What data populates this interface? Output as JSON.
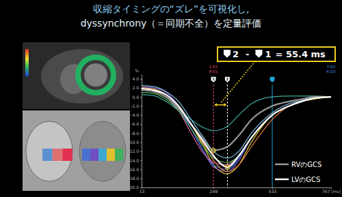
{
  "chart_data": {
    "type": "line",
    "title": "収縮タイミングの“ズレ”を可視化し,",
    "subtitle": "dyssynchrony（＝同期不全）を定量評価",
    "y_label": "%",
    "x": [
      13,
      60,
      110,
      160,
      210,
      260,
      299,
      354.4,
      400,
      450,
      533,
      600,
      650,
      700,
      767
    ],
    "xlim": [
      13,
      767
    ],
    "xticks": [
      13,
      299,
      533,
      {
        "value": 767,
        "label": "767 [ms]"
      }
    ],
    "ylim": [
      -20,
      5
    ],
    "yticks": [
      {
        "value": -20,
        "label": "-20.0"
      },
      {
        "value": -18,
        "label": "-18.0"
      },
      {
        "value": -16,
        "label": "-16.0"
      },
      {
        "value": -14,
        "label": "-14.0"
      },
      {
        "value": -12,
        "label": "-12.0"
      },
      {
        "value": -10,
        "label": "-10.0"
      },
      {
        "value": -8,
        "label": "-8.0"
      },
      {
        "value": -6,
        "label": "-6.0"
      },
      {
        "value": -4,
        "label": "-4.0"
      },
      {
        "value": -2,
        "label": "-2.0"
      },
      {
        "value": 0,
        "label": "0.0"
      },
      {
        "value": 2,
        "label": "2.0"
      },
      {
        "value": 4,
        "label": "4.0"
      }
    ],
    "grid": false,
    "legend": "lower right",
    "series": [
      {
        "color": "#40a8a0",
        "values": [
          0.5,
          0.3,
          -1,
          -3,
          -5,
          -6.8,
          -7.5,
          -6.5,
          -4,
          -1.5,
          0,
          0.2,
          0.2,
          0.2,
          0
        ]
      },
      {
        "color": "#e8d040",
        "values": [
          2,
          1.8,
          0.5,
          -2,
          -6,
          -11,
          -15,
          -17,
          -15,
          -10,
          -4,
          -2,
          -1,
          -0.5,
          0
        ]
      },
      {
        "color": "#8060d0",
        "values": [
          2.2,
          2,
          1,
          -2,
          -7,
          -12,
          -15.5,
          -16.5,
          -14,
          -9,
          -4,
          -2,
          -1,
          -0.3,
          0
        ]
      },
      {
        "color": "#4070e0",
        "values": [
          1.8,
          1.6,
          0.5,
          -2.5,
          -7,
          -12,
          -15,
          -16,
          -13.5,
          -9,
          -4,
          -2,
          -1,
          -0.3,
          0
        ]
      },
      {
        "color": "#d060a0",
        "values": [
          1.5,
          1.2,
          0,
          -3,
          -8,
          -12.5,
          -14.5,
          -15,
          -13,
          -9,
          -4,
          -2,
          -1,
          -0.3,
          0
        ]
      },
      {
        "color": "#e08040",
        "values": [
          2,
          1.7,
          0.5,
          -2,
          -6,
          -10.5,
          -14,
          -16.5,
          -15,
          -11,
          -5,
          -2,
          -1,
          -0.3,
          0
        ]
      },
      {
        "color": "#80c0e0",
        "values": [
          2.5,
          2.3,
          1.2,
          -1,
          -5,
          -9,
          -12,
          -13.5,
          -12,
          -8,
          -3.5,
          -1.5,
          -0.8,
          -0.2,
          0
        ]
      },
      {
        "color": "#60c060",
        "values": [
          1,
          0.8,
          -0.5,
          -3,
          -7,
          -11,
          -13.5,
          -14.5,
          -13,
          -9,
          -4,
          -2,
          -1,
          -0.3,
          0
        ]
      },
      {
        "name": "RVのGCS",
        "color": "#9a9a9a",
        "values": [
          1.5,
          1.2,
          0,
          -2.5,
          -6,
          -9.5,
          -11.8,
          -11,
          -8.5,
          -5,
          -2,
          -1,
          -0.5,
          0,
          0
        ]
      },
      {
        "name": "LVのGCS",
        "color": "#ffffff",
        "values": [
          1.8,
          1.5,
          0.5,
          -2,
          -6,
          -10,
          -13,
          -15.5,
          -13,
          -9,
          -4,
          -2,
          -1,
          -0.3,
          0
        ]
      }
    ],
    "markers": [
      {
        "label": "1",
        "x": 299,
        "color": "#e0507a",
        "line_style": "dashed"
      },
      {
        "label": "2",
        "x": 354.4,
        "color": "#ffffff",
        "line_style": "dashed"
      },
      {
        "x": 533,
        "color": "#1fa8d8",
        "line_style": "solid"
      }
    ],
    "events": [
      {
        "x": 299,
        "labels": [
          "1-ES",
          "R-ES"
        ],
        "color": "#e04060"
      },
      {
        "x": 767,
        "labels": [
          "T-ED",
          "R-ED"
        ],
        "color": "#4080e0"
      }
    ],
    "highlights": [
      {
        "x": 299,
        "y": -11.8,
        "color": "#f0d020"
      },
      {
        "x": 354.4,
        "y": -15.5,
        "color": "#f0d020"
      }
    ],
    "difference": {
      "first": "2",
      "operator": "-",
      "second": "1",
      "result": "= 55.4 ms",
      "color": "#f0d020"
    }
  }
}
